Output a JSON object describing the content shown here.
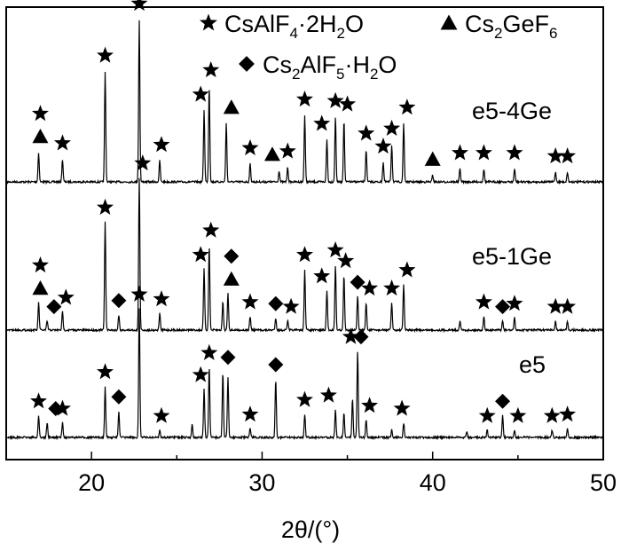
{
  "chart_data": {
    "type": "line",
    "xlabel": "2θ/(°)",
    "ylabel": "",
    "xlim": [
      15,
      50
    ],
    "x_ticks": [
      20,
      30,
      40,
      50
    ],
    "legend": {
      "placement": "top",
      "entries": [
        {
          "marker": "star",
          "label": "CsAlF4·2H2O"
        },
        {
          "marker": "triangle",
          "label": "Cs2GeF6"
        },
        {
          "marker": "diamond",
          "label": "Cs2AlF5·H2O"
        }
      ]
    },
    "series": [
      {
        "name": "e5-4Ge",
        "baseline": 0,
        "peaks": [
          [
            16.9,
            0.18
          ],
          [
            18.3,
            0.14
          ],
          [
            20.8,
            0.68
          ],
          [
            22.8,
            1.0
          ],
          [
            24.0,
            0.13
          ],
          [
            26.6,
            0.44
          ],
          [
            26.9,
            0.59
          ],
          [
            27.9,
            0.36
          ],
          [
            29.3,
            0.11
          ],
          [
            31.0,
            0.07
          ],
          [
            31.5,
            0.09
          ],
          [
            32.5,
            0.41
          ],
          [
            33.8,
            0.26
          ],
          [
            34.3,
            0.4
          ],
          [
            34.8,
            0.38
          ],
          [
            36.1,
            0.2
          ],
          [
            37.1,
            0.12
          ],
          [
            37.6,
            0.23
          ],
          [
            38.3,
            0.36
          ],
          [
            40.0,
            0.04
          ],
          [
            41.6,
            0.08
          ],
          [
            43.0,
            0.08
          ],
          [
            44.8,
            0.08
          ],
          [
            47.2,
            0.06
          ],
          [
            47.9,
            0.06
          ]
        ],
        "markers": [
          [
            17.0,
            "triangle"
          ],
          [
            17.0,
            "star"
          ],
          [
            18.3,
            "star"
          ],
          [
            20.8,
            "star"
          ],
          [
            22.8,
            "star"
          ],
          [
            24.1,
            "star"
          ],
          [
            26.4,
            "star"
          ],
          [
            27.0,
            "star"
          ],
          [
            28.2,
            "triangle"
          ],
          [
            29.3,
            "star"
          ],
          [
            30.6,
            "triangle"
          ],
          [
            31.5,
            "star"
          ],
          [
            32.5,
            "star"
          ],
          [
            33.5,
            "star"
          ],
          [
            34.3,
            "star"
          ],
          [
            35.0,
            "star"
          ],
          [
            36.1,
            "star"
          ],
          [
            37.1,
            "star"
          ],
          [
            37.6,
            "star"
          ],
          [
            38.5,
            "star"
          ],
          [
            40.0,
            "triangle"
          ],
          [
            41.6,
            "star"
          ],
          [
            43.0,
            "star"
          ],
          [
            44.8,
            "star"
          ],
          [
            47.2,
            "star"
          ],
          [
            47.9,
            "star"
          ]
        ]
      },
      {
        "name": "e5-1Ge",
        "baseline": 0,
        "peaks": [
          [
            16.9,
            0.18
          ],
          [
            17.4,
            0.06
          ],
          [
            18.3,
            0.12
          ],
          [
            20.8,
            0.71
          ],
          [
            21.6,
            0.1
          ],
          [
            22.8,
            1.0
          ],
          [
            24.0,
            0.11
          ],
          [
            26.6,
            0.4
          ],
          [
            26.9,
            0.56
          ],
          [
            27.7,
            0.19
          ],
          [
            28.0,
            0.24
          ],
          [
            29.3,
            0.09
          ],
          [
            30.8,
            0.08
          ],
          [
            31.5,
            0.06
          ],
          [
            32.5,
            0.4
          ],
          [
            33.8,
            0.26
          ],
          [
            34.3,
            0.43
          ],
          [
            34.8,
            0.36
          ],
          [
            35.6,
            0.22
          ],
          [
            36.1,
            0.18
          ],
          [
            37.6,
            0.18
          ],
          [
            38.3,
            0.3
          ],
          [
            41.6,
            0.06
          ],
          [
            43.0,
            0.09
          ],
          [
            44.1,
            0.06
          ],
          [
            44.8,
            0.08
          ],
          [
            47.2,
            0.06
          ],
          [
            47.9,
            0.06
          ]
        ],
        "markers": [
          [
            17.0,
            "triangle"
          ],
          [
            17.0,
            "star"
          ],
          [
            17.8,
            "diamond"
          ],
          [
            18.5,
            "star"
          ],
          [
            20.8,
            "star"
          ],
          [
            21.6,
            "diamond"
          ],
          [
            23.0,
            "star"
          ],
          [
            24.1,
            "star"
          ],
          [
            26.4,
            "star"
          ],
          [
            27.0,
            "star"
          ],
          [
            28.2,
            "triangle"
          ],
          [
            28.2,
            "diamond"
          ],
          [
            29.3,
            "star"
          ],
          [
            30.8,
            "diamond"
          ],
          [
            31.7,
            "star"
          ],
          [
            32.5,
            "star"
          ],
          [
            33.5,
            "star"
          ],
          [
            34.3,
            "star"
          ],
          [
            34.9,
            "star"
          ],
          [
            35.6,
            "diamond"
          ],
          [
            36.3,
            "star"
          ],
          [
            37.6,
            "star"
          ],
          [
            38.5,
            "star"
          ],
          [
            43.0,
            "star"
          ],
          [
            44.1,
            "diamond"
          ],
          [
            44.8,
            "star"
          ],
          [
            47.2,
            "star"
          ],
          [
            47.9,
            "star"
          ]
        ]
      },
      {
        "name": "e5",
        "baseline": 0,
        "peaks": [
          [
            16.9,
            0.15
          ],
          [
            17.4,
            0.1
          ],
          [
            18.3,
            0.1
          ],
          [
            20.8,
            0.35
          ],
          [
            21.6,
            0.18
          ],
          [
            22.8,
            0.88
          ],
          [
            24.0,
            0.05
          ],
          [
            25.9,
            0.09
          ],
          [
            26.6,
            0.33
          ],
          [
            26.9,
            0.48
          ],
          [
            27.7,
            0.45
          ],
          [
            28.0,
            0.41
          ],
          [
            29.3,
            0.06
          ],
          [
            30.8,
            0.4
          ],
          [
            32.5,
            0.16
          ],
          [
            34.3,
            0.19
          ],
          [
            34.8,
            0.17
          ],
          [
            35.3,
            0.27
          ],
          [
            35.6,
            0.59
          ],
          [
            36.1,
            0.12
          ],
          [
            37.6,
            0.05
          ],
          [
            38.3,
            0.1
          ],
          [
            42.0,
            0.04
          ],
          [
            43.2,
            0.05
          ],
          [
            44.1,
            0.15
          ],
          [
            44.8,
            0.05
          ],
          [
            47.0,
            0.05
          ],
          [
            47.9,
            0.06
          ]
        ],
        "markers": [
          [
            16.9,
            "star"
          ],
          [
            17.9,
            "diamond"
          ],
          [
            18.3,
            "star"
          ],
          [
            20.8,
            "star"
          ],
          [
            21.6,
            "diamond"
          ],
          [
            22.8,
            "star"
          ],
          [
            24.1,
            "star"
          ],
          [
            26.4,
            "star"
          ],
          [
            26.9,
            "star"
          ],
          [
            28.0,
            "diamond"
          ],
          [
            29.3,
            "star"
          ],
          [
            30.8,
            "diamond"
          ],
          [
            32.5,
            "star"
          ],
          [
            33.9,
            "star"
          ],
          [
            35.2,
            "star"
          ],
          [
            35.8,
            "diamond"
          ],
          [
            36.3,
            "star"
          ],
          [
            38.2,
            "star"
          ],
          [
            43.2,
            "star"
          ],
          [
            44.1,
            "diamond"
          ],
          [
            45.0,
            "star"
          ],
          [
            47.0,
            "star"
          ],
          [
            47.9,
            "star"
          ]
        ]
      }
    ]
  }
}
